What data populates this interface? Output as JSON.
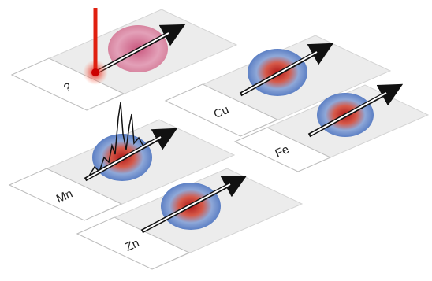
{
  "slides": [
    {
      "label": "?"
    },
    {
      "label": "Cu"
    },
    {
      "label": "Mn"
    },
    {
      "label": "Fe"
    },
    {
      "label": "Zn"
    }
  ]
}
